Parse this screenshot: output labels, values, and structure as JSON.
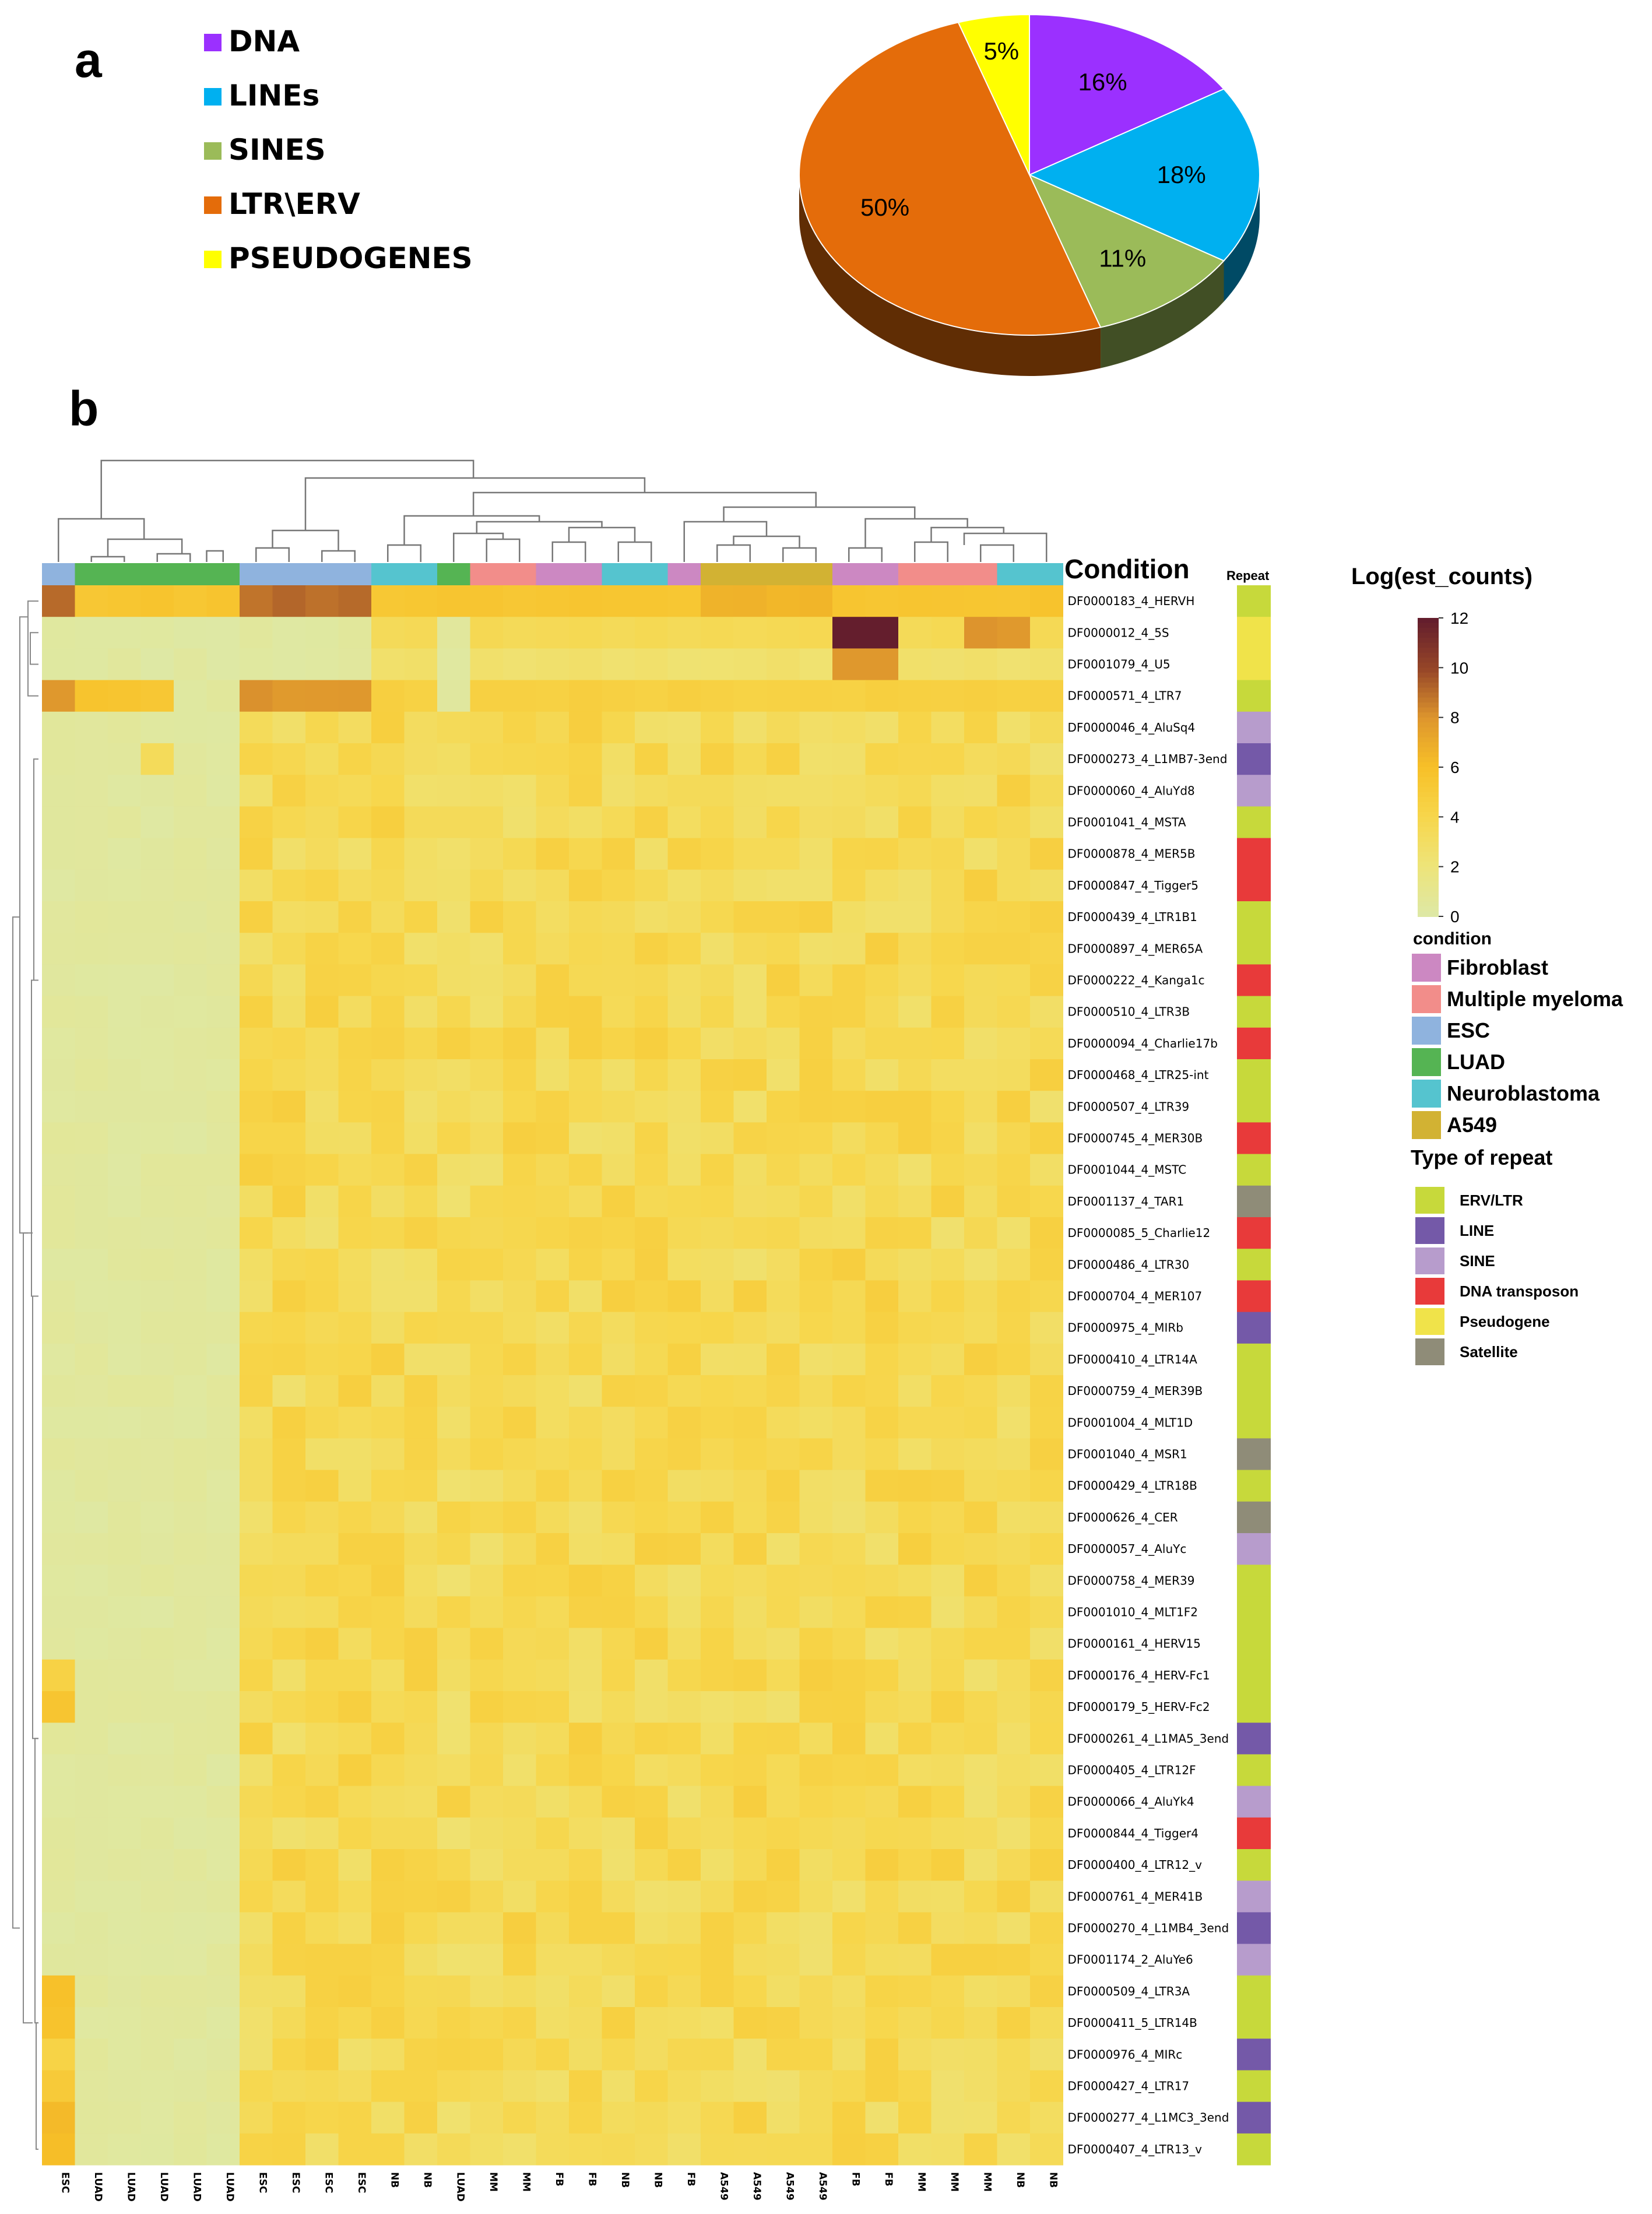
{
  "panels": {
    "a": "a",
    "b": "b"
  },
  "chart_data": [
    {
      "type": "pie",
      "slices": [
        {
          "label": "DNA",
          "value": 16,
          "text": "16%",
          "color": "#9b30ff"
        },
        {
          "label": "LINEs",
          "value": 18,
          "text": "18%",
          "color": "#00b0f0"
        },
        {
          "label": "SINES",
          "value": 11,
          "text": "11%",
          "color": "#9bbb59"
        },
        {
          "label": "LTR\\ERV",
          "value": 50,
          "text": "50%",
          "color": "#e46c0a"
        },
        {
          "label": "PSEUDOGENES",
          "value": 5,
          "text": "5%",
          "color": "#ffff00"
        }
      ]
    },
    {
      "type": "heatmap",
      "condition_label": "Condition",
      "repeat_label": "Repeat",
      "columns": [
        "ESC",
        "LUAD",
        "LUAD",
        "LUAD",
        "LUAD",
        "LUAD",
        "ESC",
        "ESC",
        "ESC",
        "ESC",
        "NB",
        "NB",
        "LUAD",
        "MM",
        "MM",
        "FB",
        "FB",
        "NB",
        "NB",
        "FB",
        "A549",
        "A549",
        "A549",
        "A549",
        "FB",
        "FB",
        "MM",
        "MM",
        "MM",
        "NB",
        "NB"
      ],
      "rows": [
        "DF0000183_4_HERVH",
        "DF0000012_4_5S",
        "DF0001079_4_U5",
        "DF0000571_4_LTR7",
        "DF0000046_4_AluSq4",
        "DF0000273_4_L1MB7-3end",
        "DF0000060_4_AluYd8",
        "DF0001041_4_MSTA",
        "DF0000878_4_MER5B",
        "DF0000847_4_Tigger5",
        "DF0000439_4_LTR1B1",
        "DF0000897_4_MER65A",
        "DF0000222_4_Kanga1c",
        "DF0000510_4_LTR3B",
        "DF0000094_4_Charlie17b",
        "DF0000468_4_LTR25-int",
        "DF0000507_4_LTR39",
        "DF0000745_4_MER30B",
        "DF0001044_4_MSTC",
        "DF0001137_4_TAR1",
        "DF0000085_5_Charlie12",
        "DF0000486_4_LTR30",
        "DF0000704_4_MER107",
        "DF0000975_4_MIRb",
        "DF0000410_4_LTR14A",
        "DF0000759_4_MER39B",
        "DF0001004_4_MLT1D",
        "DF0001040_4_MSR1",
        "DF0000429_4_LTR18B",
        "DF0000626_4_CER",
        "DF0000057_4_AluYc",
        "DF0000758_4_MER39",
        "DF0001010_4_MLT1F2",
        "DF0000161_4_HERV15",
        "DF0000176_4_HERV-Fc1",
        "DF0000179_5_HERV-Fc2",
        "DF0000261_4_L1MA5_3end",
        "DF0000405_4_LTR12F",
        "DF0000066_4_AluYk4",
        "DF0000844_4_Tigger4",
        "DF0000400_4_LTR12_v",
        "DF0000761_4_MER41B",
        "DF0000270_4_L1MB4_3end",
        "DF0001174_2_AluYe6",
        "DF0000509_4_LTR3A",
        "DF0000411_5_LTR14B",
        "DF0000976_4_MIRc",
        "DF0000427_4_LTR17",
        "DF0000277_4_L1MC3_3end",
        "DF0000407_4_LTR13_v"
      ],
      "row_repeat_types": [
        "ERV/LTR",
        "Pseudogene",
        "Pseudogene",
        "ERV/LTR",
        "SINE",
        "LINE",
        "SINE",
        "ERV/LTR",
        "DNA transposon",
        "DNA transposon",
        "ERV/LTR",
        "ERV/LTR",
        "DNA transposon",
        "ERV/LTR",
        "DNA transposon",
        "ERV/LTR",
        "ERV/LTR",
        "DNA transposon",
        "ERV/LTR",
        "Satellite",
        "DNA transposon",
        "ERV/LTR",
        "DNA transposon",
        "LINE",
        "ERV/LTR",
        "ERV/LTR",
        "ERV/LTR",
        "Satellite",
        "ERV/LTR",
        "Satellite",
        "SINE",
        "ERV/LTR",
        "ERV/LTR",
        "ERV/LTR",
        "ERV/LTR",
        "ERV/LTR",
        "LINE",
        "ERV/LTR",
        "SINE",
        "DNA transposon",
        "ERV/LTR",
        "SINE",
        "LINE",
        "SINE",
        "ERV/LTR",
        "ERV/LTR",
        "LINE",
        "ERV/LTR",
        "LINE",
        "ERV/LTR"
      ],
      "column_conditions": [
        "ESC",
        "LUAD",
        "LUAD",
        "LUAD",
        "LUAD",
        "LUAD",
        "ESC",
        "ESC",
        "ESC",
        "ESC",
        "Neuroblastoma",
        "Neuroblastoma",
        "LUAD",
        "Multiple myeloma",
        "Multiple myeloma",
        "Fibroblast",
        "Fibroblast",
        "Neuroblastoma",
        "Neuroblastoma",
        "Fibroblast",
        "A549",
        "A549",
        "A549",
        "A549",
        "Fibroblast",
        "Fibroblast",
        "Multiple myeloma",
        "Multiple myeloma",
        "Multiple myeloma",
        "Neuroblastoma",
        "Neuroblastoma"
      ],
      "colorbar": {
        "title": "Log(est_counts)",
        "ticks": [
          0,
          2,
          4,
          6,
          8,
          10,
          12
        ],
        "range": [
          0,
          12
        ]
      },
      "legend": {
        "condition_title": "condition",
        "conditions": [
          {
            "label": "Fibroblast",
            "color": "#cc88c2"
          },
          {
            "label": "Multiple myeloma",
            "color": "#f28d8a"
          },
          {
            "label": "ESC",
            "color": "#8fb3de"
          },
          {
            "label": "LUAD",
            "color": "#55b453"
          },
          {
            "label": "Neuroblastoma",
            "color": "#55c4cf"
          },
          {
            "label": "A549",
            "color": "#d2b233"
          }
        ],
        "repeat_title": "Type of repeat",
        "repeats": [
          {
            "label": "ERV/LTR",
            "color": "#c7d93b"
          },
          {
            "label": "LINE",
            "color": "#7459a8"
          },
          {
            "label": "SINE",
            "color": "#b79ccc"
          },
          {
            "label": "DNA transposon",
            "color": "#e83a3a"
          },
          {
            "label": "Pseudogene",
            "color": "#f0e34a"
          },
          {
            "label": "Satellite",
            "color": "#8f8c78"
          }
        ]
      }
    }
  ]
}
